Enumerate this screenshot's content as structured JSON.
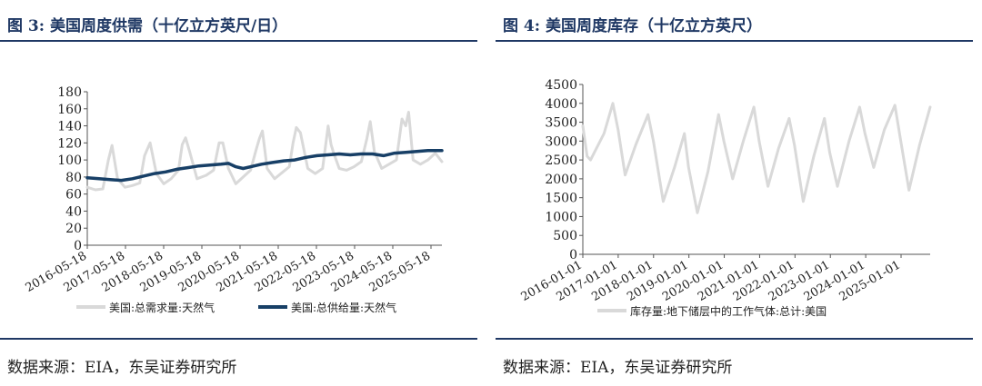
{
  "panels": {
    "left": {
      "title": "图 3:  美国周度供需（十亿立方英尺/日）",
      "source": "数据来源：EIA，东吴证券研究所"
    },
    "right": {
      "title": "图 4:  美国周度库存（十亿立方英尺）",
      "source": "数据来源：EIA，东吴证券研究所"
    }
  },
  "chart_data": [
    {
      "type": "line",
      "title": "美国周度供需（十亿立方英尺/日）",
      "ylim": [
        0,
        180
      ],
      "y_ticks": [
        "0",
        "20",
        "40",
        "60",
        "80",
        "100",
        "120",
        "140",
        "160",
        "180"
      ],
      "x_tick_labels": [
        "2016-05-18",
        "2017-05-18",
        "2018-05-18",
        "2019-05-18",
        "2020-05-18",
        "2021-05-18",
        "2022-05-18",
        "2023-05-18",
        "2024-05-18",
        "2025-05-18"
      ],
      "x_range": [
        2016.38,
        2025.98
      ],
      "legend_position": "bottom",
      "series": [
        {
          "name": "美国:总需求量:天然气",
          "color": "#d9d9d9",
          "x": [
            2016.38,
            2016.6,
            2016.8,
            2016.95,
            2017.05,
            2017.2,
            2017.4,
            2017.6,
            2017.8,
            2017.93,
            2018.0,
            2018.08,
            2018.25,
            2018.45,
            2018.65,
            2018.85,
            2018.95,
            2019.04,
            2019.15,
            2019.35,
            2019.6,
            2019.8,
            2019.95,
            2020.05,
            2020.2,
            2020.4,
            2020.6,
            2020.8,
            2020.95,
            2021.04,
            2021.12,
            2021.25,
            2021.45,
            2021.65,
            2021.85,
            2021.95,
            2022.04,
            2022.15,
            2022.35,
            2022.55,
            2022.75,
            2022.9,
            2022.98,
            2023.05,
            2023.2,
            2023.4,
            2023.6,
            2023.8,
            2023.95,
            2024.04,
            2024.15,
            2024.35,
            2024.55,
            2024.75,
            2024.9,
            2025.0,
            2025.08,
            2025.2,
            2025.4,
            2025.6,
            2025.8,
            2025.98
          ],
          "y": [
            68,
            65,
            66,
            100,
            117,
            78,
            68,
            70,
            73,
            105,
            112,
            120,
            84,
            72,
            78,
            88,
            118,
            126,
            110,
            78,
            82,
            88,
            120,
            120,
            90,
            72,
            80,
            88,
            112,
            125,
            134,
            90,
            78,
            85,
            92,
            120,
            138,
            132,
            90,
            84,
            90,
            140,
            118,
            108,
            90,
            88,
            92,
            98,
            125,
            145,
            110,
            90,
            95,
            100,
            148,
            140,
            156,
            100,
            95,
            100,
            108,
            98
          ]
        },
        {
          "name": "美国:总供给量:天然气",
          "color": "#173f66",
          "x": [
            2016.38,
            2016.7,
            2017.0,
            2017.3,
            2017.6,
            2017.9,
            2018.2,
            2018.5,
            2018.8,
            2019.1,
            2019.4,
            2019.7,
            2020.0,
            2020.2,
            2020.4,
            2020.6,
            2020.9,
            2021.1,
            2021.4,
            2021.7,
            2022.0,
            2022.3,
            2022.6,
            2022.9,
            2023.2,
            2023.5,
            2023.8,
            2024.1,
            2024.4,
            2024.7,
            2025.0,
            2025.3,
            2025.6,
            2025.98
          ],
          "y": [
            79,
            78,
            77,
            76,
            78,
            81,
            84,
            86,
            89,
            91,
            93,
            94,
            95,
            96,
            92,
            90,
            93,
            95,
            97,
            99,
            100,
            103,
            105,
            106,
            107,
            106,
            107,
            107,
            105,
            108,
            109,
            110,
            111,
            111
          ]
        }
      ]
    },
    {
      "type": "line",
      "title": "美国周度库存（十亿立方英尺）",
      "ylim": [
        0,
        4500
      ],
      "y_ticks": [
        "0",
        "500",
        "1000",
        "1500",
        "2000",
        "2500",
        "3000",
        "3500",
        "4000",
        "4500"
      ],
      "x_tick_labels": [
        "2016-01-01",
        "2017-01-01",
        "2018-01-01",
        "2019-01-01",
        "2020-01-01",
        "2021-01-01",
        "2022-01-01",
        "2023-01-01",
        "2024-01-01",
        "2025-01-01"
      ],
      "x_range": [
        2016.0,
        2025.85
      ],
      "legend_position": "bottom",
      "series": [
        {
          "name": "库存量:地下储层中的工作气体:总计:美国",
          "color": "#d9d9d9",
          "x": [
            2016.0,
            2016.12,
            2016.22,
            2016.6,
            2016.85,
            2017.0,
            2017.2,
            2017.5,
            2017.85,
            2018.0,
            2018.28,
            2018.6,
            2018.88,
            2019.0,
            2019.25,
            2019.55,
            2019.85,
            2020.0,
            2020.25,
            2020.55,
            2020.85,
            2021.0,
            2021.25,
            2021.55,
            2021.85,
            2022.0,
            2022.25,
            2022.55,
            2022.85,
            2023.0,
            2023.22,
            2023.55,
            2023.85,
            2024.0,
            2024.25,
            2024.55,
            2024.85,
            2025.0,
            2025.25,
            2025.55,
            2025.85
          ],
          "y": [
            3400,
            2600,
            2500,
            3200,
            4000,
            3300,
            2100,
            2900,
            3700,
            3000,
            1400,
            2300,
            3200,
            2300,
            1100,
            2200,
            3700,
            3000,
            2000,
            3000,
            3900,
            3000,
            1800,
            2800,
            3600,
            2900,
            1400,
            2600,
            3600,
            2700,
            1800,
            3000,
            3900,
            3200,
            2300,
            3300,
            3950,
            3100,
            1700,
            2900,
            3900
          ]
        }
      ]
    }
  ]
}
